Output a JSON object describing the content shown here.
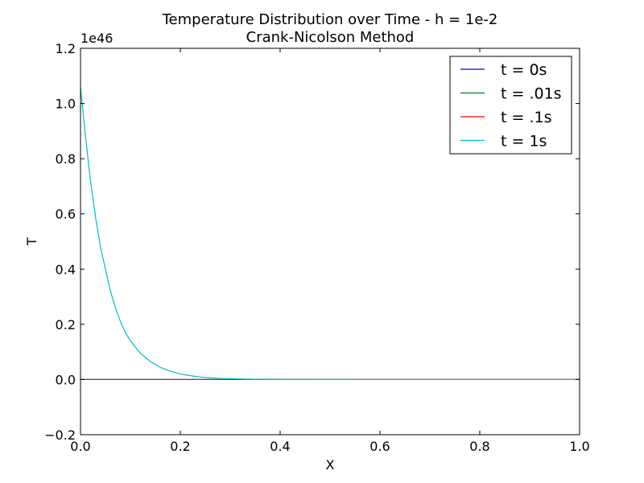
{
  "chart_data": {
    "type": "line",
    "title": "Temperature Distribution over Time - h = 1e-2",
    "subtitle": "Crank-Nicolson Method",
    "xlabel": "X",
    "ylabel": "T",
    "xlim": [
      0.0,
      1.0
    ],
    "ylim": [
      -0.2,
      1.2
    ],
    "y_scale_label": "1e46",
    "x_tick_labels": [
      "0.0",
      "0.2",
      "0.4",
      "0.6",
      "0.8",
      "1.0"
    ],
    "y_tick_labels": [
      "−0.2",
      "0.0",
      "0.2",
      "0.4",
      "0.6",
      "0.8",
      "1.0",
      "1.2"
    ],
    "grid": false,
    "legend_position": "top-right",
    "x": [
      0.0,
      0.01,
      0.02,
      0.03,
      0.04,
      0.05,
      0.06,
      0.07,
      0.08,
      0.09,
      0.1,
      0.12,
      0.14,
      0.16,
      0.18,
      0.2,
      0.22,
      0.24,
      0.26,
      0.28,
      0.3,
      0.32,
      0.35,
      0.4,
      0.5,
      0.6,
      0.7,
      0.8,
      0.9,
      1.0
    ],
    "series": [
      {
        "name": "t = 0s",
        "color": "#0000ff",
        "values": [
          0,
          0,
          0,
          0,
          0,
          0,
          0,
          0,
          0,
          0,
          0,
          0,
          0,
          0,
          0,
          0,
          0,
          0,
          0,
          0,
          0,
          0,
          0,
          0,
          0,
          0,
          0,
          0,
          0,
          0
        ]
      },
      {
        "name": "t = .01s",
        "color": "#008000",
        "values": [
          0,
          0,
          0,
          0,
          0,
          0,
          0,
          0,
          0,
          0,
          0,
          0,
          0,
          0,
          0,
          0,
          0,
          0,
          0,
          0,
          0,
          0,
          0,
          0,
          0,
          0,
          0,
          0,
          0,
          0
        ]
      },
      {
        "name": "t = .1s",
        "color": "#ff0000",
        "values": [
          0,
          0,
          0,
          0,
          0,
          0,
          0,
          0,
          0,
          0,
          0,
          0,
          0,
          0,
          0,
          0,
          0,
          0,
          0,
          0,
          0,
          0,
          0,
          0,
          0,
          0,
          0,
          0,
          0,
          0
        ]
      },
      {
        "name": "t = 1s",
        "color": "#00bfbf",
        "values": [
          1.06,
          0.88,
          0.72,
          0.59,
          0.48,
          0.4,
          0.32,
          0.26,
          0.21,
          0.17,
          0.14,
          0.095,
          0.065,
          0.044,
          0.03,
          0.02,
          0.014,
          0.009,
          0.006,
          0.004,
          0.003,
          0.002,
          0.001,
          0.0005,
          0.0001,
          0,
          0,
          0,
          0,
          0
        ]
      }
    ]
  }
}
